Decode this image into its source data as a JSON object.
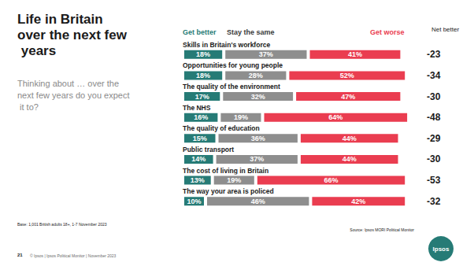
{
  "chart_data": {
    "type": "bar",
    "title": "Life in Britain over the next few years",
    "subtitle": "Thinking about … over the next few years do you expect it to?",
    "orientation": "horizontal",
    "stacked": true,
    "data_labels": true,
    "tick_labels": "y",
    "grid": false,
    "xlim": [
      0,
      100
    ],
    "categories": [
      "Skills in Britain's workforce",
      "Opportunities for young people",
      "The quality of the environment",
      "The NHS",
      "The quality of education",
      "Public transport",
      "The cost of living in Britain",
      "The way your area is policed"
    ],
    "series": [
      {
        "name": "Get better",
        "color": "#267b76",
        "values": [
          18,
          18,
          17,
          16,
          15,
          14,
          13,
          10
        ],
        "value_labels": [
          "18%",
          "18%",
          "17%",
          "16%",
          "15%",
          "14%",
          "13%",
          "10%"
        ]
      },
      {
        "name": "Stay the same",
        "color": "#8e8e8e",
        "values": [
          37,
          28,
          32,
          19,
          36,
          37,
          19,
          46
        ],
        "value_labels": [
          "37%",
          "28%",
          "32%",
          "19%",
          "36%",
          "37%",
          "19%",
          "46%"
        ]
      },
      {
        "name": "Get worse",
        "color": "#ea3d50",
        "values": [
          41,
          52,
          47,
          64,
          44,
          44,
          66,
          42
        ],
        "value_labels": [
          "41%",
          "52%",
          "47%",
          "64%",
          "44%",
          "44%",
          "66%",
          "42%"
        ]
      }
    ],
    "net_better_label": "Net better",
    "net_better": [
      -23,
      -34,
      -30,
      -48,
      -29,
      -30,
      -53,
      -32
    ],
    "base": "Base: 1,001 British adults 18+, 1-7 November 2023",
    "source": "Source: Ipsos MORI Political Monitor",
    "page_number": "21",
    "footer": "© Ipsos | Ipsos Political Monitor | November 2023",
    "logo": "Ipsos"
  }
}
